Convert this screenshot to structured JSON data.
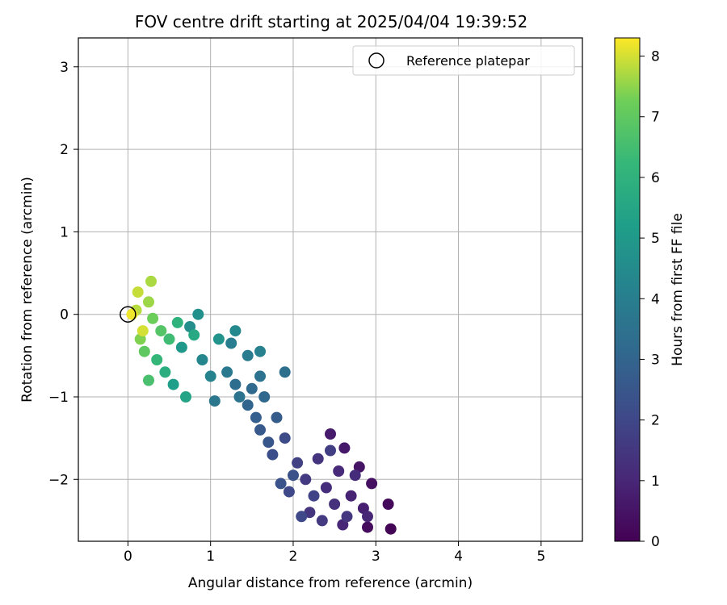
{
  "chart_data": {
    "type": "scatter",
    "title": "FOV centre drift starting at 2025/04/04 19:39:52",
    "xlabel": "Angular distance from reference (arcmin)",
    "ylabel": "Rotation from reference (arcmin)",
    "xlim": [
      -0.6,
      5.5
    ],
    "ylim": [
      -2.75,
      3.35
    ],
    "xticks": [
      "0",
      "1",
      "2",
      "3",
      "4",
      "5"
    ],
    "yticks": [
      "−2",
      "−1",
      "0",
      "1",
      "2",
      "3"
    ],
    "grid": true,
    "legend": {
      "position": "top-right",
      "entries": [
        "Reference platepar"
      ]
    },
    "reference_point": {
      "x": 0,
      "y": 0,
      "label": "Reference platepar"
    },
    "colorbar": {
      "label": "Hours from first FF file",
      "range": [
        0,
        8.3
      ],
      "ticks": [
        "0",
        "1",
        "2",
        "3",
        "4",
        "5",
        "6",
        "7",
        "8"
      ],
      "colormap": "viridis"
    },
    "points": [
      [
        3.18,
        -2.6,
        0.1
      ],
      [
        3.15,
        -2.3,
        0.2
      ],
      [
        2.9,
        -2.58,
        0.3
      ],
      [
        2.95,
        -2.05,
        0.4
      ],
      [
        2.8,
        -1.85,
        0.5
      ],
      [
        2.62,
        -1.62,
        0.6
      ],
      [
        2.45,
        -1.45,
        0.7
      ],
      [
        2.85,
        -2.35,
        0.8
      ],
      [
        2.7,
        -2.2,
        0.9
      ],
      [
        2.6,
        -2.55,
        1.0
      ],
      [
        2.9,
        -2.45,
        1.0
      ],
      [
        2.55,
        -1.9,
        1.1
      ],
      [
        2.4,
        -2.1,
        1.2
      ],
      [
        2.75,
        -1.95,
        1.2
      ],
      [
        2.5,
        -2.3,
        1.3
      ],
      [
        2.3,
        -1.75,
        1.4
      ],
      [
        2.2,
        -2.4,
        1.4
      ],
      [
        2.65,
        -2.45,
        1.5
      ],
      [
        2.35,
        -2.5,
        1.6
      ],
      [
        2.15,
        -2.0,
        1.6
      ],
      [
        2.45,
        -1.65,
        1.7
      ],
      [
        2.05,
        -1.8,
        1.8
      ],
      [
        2.25,
        -2.2,
        1.9
      ],
      [
        2.1,
        -2.45,
        2.0
      ],
      [
        1.95,
        -2.15,
        2.0
      ],
      [
        1.9,
        -1.5,
        2.1
      ],
      [
        1.75,
        -1.7,
        2.2
      ],
      [
        2.0,
        -1.95,
        2.3
      ],
      [
        1.85,
        -2.05,
        2.4
      ],
      [
        1.7,
        -1.55,
        2.5
      ],
      [
        1.6,
        -1.4,
        2.6
      ],
      [
        1.8,
        -1.25,
        2.7
      ],
      [
        1.55,
        -1.25,
        2.8
      ],
      [
        1.45,
        -1.1,
        3.0
      ],
      [
        1.65,
        -1.0,
        3.1
      ],
      [
        1.5,
        -0.9,
        3.2
      ],
      [
        1.3,
        -0.85,
        3.3
      ],
      [
        1.9,
        -0.7,
        3.4
      ],
      [
        1.6,
        -0.75,
        3.5
      ],
      [
        1.35,
        -1.0,
        3.6
      ],
      [
        1.05,
        -1.05,
        3.7
      ],
      [
        1.2,
        -0.7,
        3.8
      ],
      [
        1.45,
        -0.5,
        3.9
      ],
      [
        1.25,
        -0.35,
        4.0
      ],
      [
        1.6,
        -0.45,
        4.1
      ],
      [
        1.0,
        -0.75,
        4.2
      ],
      [
        0.9,
        -0.55,
        4.3
      ],
      [
        1.3,
        -0.2,
        4.4
      ],
      [
        0.75,
        -0.15,
        4.6
      ],
      [
        0.85,
        0.0,
        4.7
      ],
      [
        1.1,
        -0.3,
        4.8
      ],
      [
        0.65,
        -0.4,
        5.0
      ],
      [
        0.55,
        -0.85,
        5.2
      ],
      [
        0.7,
        -1.0,
        5.4
      ],
      [
        0.8,
        -0.25,
        5.6
      ],
      [
        0.45,
        -0.7,
        5.8
      ],
      [
        0.6,
        -0.1,
        6.0
      ],
      [
        0.35,
        -0.55,
        6.2
      ],
      [
        0.5,
        -0.3,
        6.4
      ],
      [
        0.25,
        -0.8,
        6.6
      ],
      [
        0.4,
        -0.2,
        6.8
      ],
      [
        0.2,
        -0.45,
        7.0
      ],
      [
        0.3,
        -0.05,
        7.2
      ],
      [
        0.15,
        -0.3,
        7.4
      ],
      [
        0.25,
        0.15,
        7.6
      ],
      [
        0.1,
        0.05,
        7.8
      ],
      [
        0.18,
        -0.2,
        8.0
      ],
      [
        0.05,
        0.0,
        8.2
      ],
      [
        0.28,
        0.4,
        7.7
      ],
      [
        0.12,
        0.27,
        7.9
      ]
    ]
  }
}
